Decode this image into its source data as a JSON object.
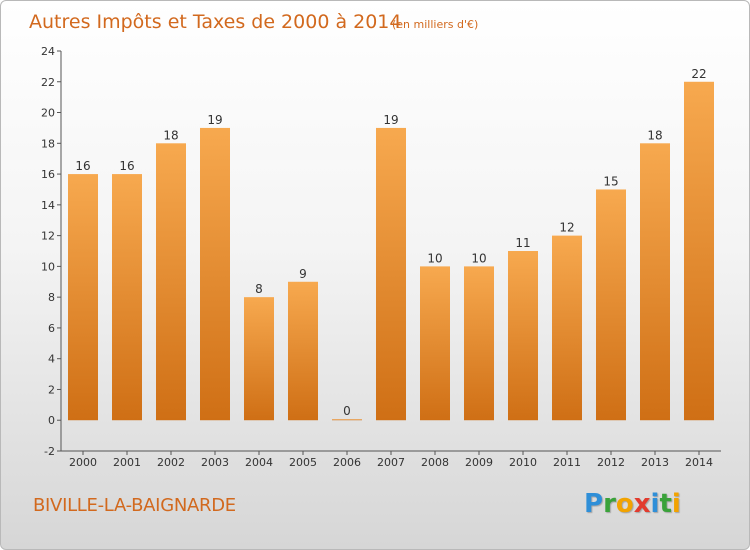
{
  "chart_data": {
    "type": "bar",
    "title": "Autres Impôts et Taxes de 2000 à 2014",
    "subtitle": "(en milliers d'€)",
    "categories": [
      "2000",
      "2001",
      "2002",
      "2003",
      "2004",
      "2005",
      "2006",
      "2007",
      "2008",
      "2009",
      "2010",
      "2011",
      "2012",
      "2013",
      "2014"
    ],
    "values": [
      16,
      16,
      18,
      19,
      8,
      9,
      0,
      19,
      10,
      10,
      11,
      12,
      15,
      18,
      22
    ],
    "ylim": [
      -2,
      24
    ],
    "yticks": [
      -2,
      0,
      2,
      4,
      6,
      8,
      10,
      12,
      14,
      16,
      18,
      20,
      22,
      24
    ],
    "xlabel": "",
    "ylabel": "",
    "grid": false,
    "bar_color": "#f28c28",
    "bar_color_light": "#f7a94f",
    "bar_color_dark": "#cf6f15"
  },
  "footer": {
    "commune": "BIVILLE-LA-BAIGNARDE",
    "logo_letters": [
      {
        "ch": "P",
        "color": "#2f8fd8"
      },
      {
        "ch": "r",
        "color": "#3aa23a"
      },
      {
        "ch": "o",
        "color": "#f2a300"
      },
      {
        "ch": "x",
        "color": "#e23b2e"
      },
      {
        "ch": "i",
        "color": "#2f8fd8"
      },
      {
        "ch": "t",
        "color": "#3aa23a"
      },
      {
        "ch": "i",
        "color": "#f2a300"
      }
    ]
  }
}
